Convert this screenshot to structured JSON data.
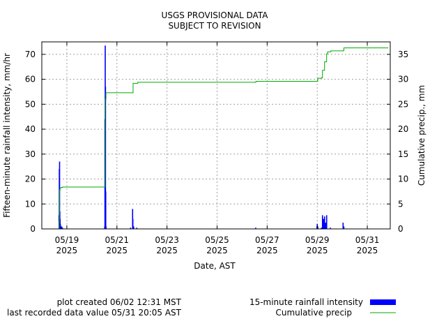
{
  "chart_data": {
    "type": "bar",
    "title": "USGS PROVISIONAL DATA",
    "subtitle": "SUBJECT TO REVISION",
    "xlabel": "Date, AST",
    "ylabel": "Fifteen-minute rainfall intensity, mm/hr",
    "y2label": "Cumulative precip., mm",
    "xlim": [
      "2025-05-18 00:00",
      "2025-05-31 22:00"
    ],
    "ylim": [
      0,
      75
    ],
    "y2lim": [
      0,
      37.5
    ],
    "yticks": [
      0,
      10,
      20,
      30,
      40,
      50,
      60,
      70
    ],
    "y2ticks": [
      0,
      5,
      10,
      15,
      20,
      25,
      30,
      35
    ],
    "xticks": [
      {
        "date": "2025-05-19 00:00",
        "label": "05/19",
        "year": "2025"
      },
      {
        "date": "2025-05-21 00:00",
        "label": "05/21",
        "year": "2025"
      },
      {
        "date": "2025-05-23 00:00",
        "label": "05/23",
        "year": "2025"
      },
      {
        "date": "2025-05-25 00:00",
        "label": "05/25",
        "year": "2025"
      },
      {
        "date": "2025-05-27 00:00",
        "label": "05/27",
        "year": "2025"
      },
      {
        "date": "2025-05-29 00:00",
        "label": "05/29",
        "year": "2025"
      },
      {
        "date": "2025-05-31 00:00",
        "label": "05/31",
        "year": "2025"
      }
    ],
    "grid": true,
    "series": [
      {
        "name": "15-minute rainfall intensity",
        "kind": "bar",
        "color": "#0000ff",
        "axis": "left",
        "points": [
          [
            "2025-05-18 16:30",
            5.5
          ],
          [
            "2025-05-18 16:45",
            24
          ],
          [
            "2025-05-18 17:00",
            27
          ],
          [
            "2025-05-18 17:15",
            7
          ],
          [
            "2025-05-18 17:30",
            4
          ],
          [
            "2025-05-18 17:45",
            2
          ],
          [
            "2025-05-18 18:15",
            1
          ],
          [
            "2025-05-18 19:00",
            1
          ],
          [
            "2025-05-18 19:45",
            0.5
          ],
          [
            "2025-05-20 12:15",
            1
          ],
          [
            "2025-05-20 12:30",
            44
          ],
          [
            "2025-05-20 12:45",
            73.5
          ],
          [
            "2025-05-20 13:00",
            57
          ],
          [
            "2025-05-20 13:15",
            15
          ],
          [
            "2025-05-20 13:30",
            1
          ],
          [
            "2025-05-21 13:00",
            0.5
          ],
          [
            "2025-05-21 15:00",
            8
          ],
          [
            "2025-05-21 15:15",
            4
          ],
          [
            "2025-05-21 16:00",
            1
          ],
          [
            "2025-05-21 19:00",
            0.5
          ],
          [
            "2025-05-26 13:00",
            0.5
          ],
          [
            "2025-05-28 23:45",
            1
          ],
          [
            "2025-05-29 00:00",
            2
          ],
          [
            "2025-05-29 00:30",
            1
          ],
          [
            "2025-05-29 04:00",
            0.5
          ],
          [
            "2025-05-29 05:00",
            5.5
          ],
          [
            "2025-05-29 06:00",
            4
          ],
          [
            "2025-05-29 07:00",
            5
          ],
          [
            "2025-05-29 08:00",
            2.5
          ],
          [
            "2025-05-29 09:00",
            5.5
          ],
          [
            "2025-05-29 12:30",
            0.5
          ],
          [
            "2025-05-30 00:45",
            2.5
          ],
          [
            "2025-05-30 01:30",
            1
          ]
        ]
      },
      {
        "name": "Cumulative precip",
        "kind": "line",
        "color": "#00aa00",
        "axis": "right",
        "points": [
          [
            "2025-05-18 16:00",
            0
          ],
          [
            "2025-05-18 16:30",
            1.4
          ],
          [
            "2025-05-18 17:00",
            7.8
          ],
          [
            "2025-05-18 17:30",
            8.2
          ],
          [
            "2025-05-18 18:30",
            8.3
          ],
          [
            "2025-05-18 20:00",
            8.4
          ],
          [
            "2025-05-20 12:15",
            8.4
          ],
          [
            "2025-05-20 12:45",
            26.0
          ],
          [
            "2025-05-20 13:30",
            27.3
          ],
          [
            "2025-05-21 14:45",
            27.3
          ],
          [
            "2025-05-21 15:30",
            29.2
          ],
          [
            "2025-05-21 20:00",
            29.4
          ],
          [
            "2025-05-26 12:45",
            29.4
          ],
          [
            "2025-05-26 13:15",
            29.6
          ],
          [
            "2025-05-28 23:30",
            29.6
          ],
          [
            "2025-05-29 00:30",
            30.2
          ],
          [
            "2025-05-29 04:00",
            30.3
          ],
          [
            "2025-05-29 05:00",
            31.8
          ],
          [
            "2025-05-29 07:00",
            33.5
          ],
          [
            "2025-05-29 09:00",
            35.1
          ],
          [
            "2025-05-29 10:00",
            35.5
          ],
          [
            "2025-05-29 13:00",
            35.7
          ],
          [
            "2025-05-30 00:30",
            35.7
          ],
          [
            "2025-05-30 01:30",
            36.3
          ],
          [
            "2025-05-31 20:05",
            36.3
          ]
        ]
      }
    ]
  },
  "legend": {
    "intensity_label": "15-minute rainfall intensity",
    "cumulative_label": "Cumulative precip",
    "placement": "bottom-right"
  },
  "footer": {
    "created": "plot created 06/02 12:31 MST",
    "last_value": "last recorded data value 05/31 20:05 AST"
  }
}
